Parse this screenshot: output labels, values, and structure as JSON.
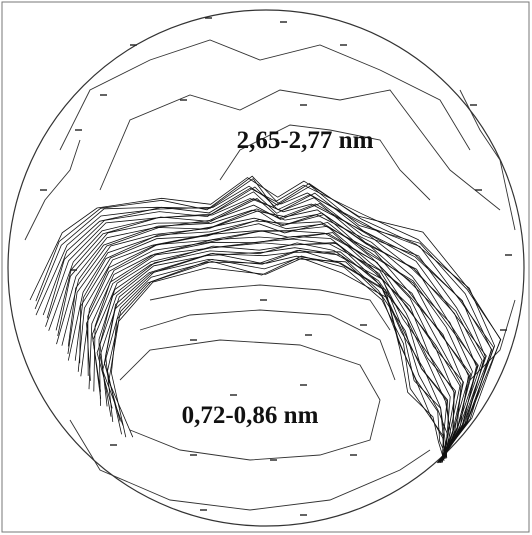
{
  "labels": {
    "top_region": "2,65-2,77 nm",
    "bottom_region": "0,72-0,86 nm"
  }
}
